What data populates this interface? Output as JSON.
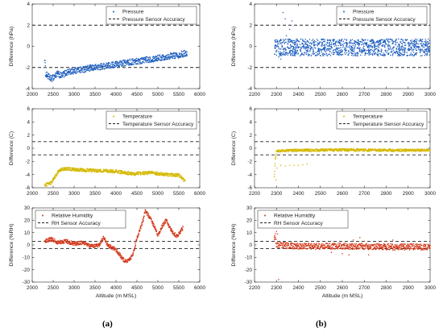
{
  "figure_labels": [
    "(a)",
    "(b)"
  ],
  "chart_data": [
    {
      "id": "pressure-a",
      "type": "scatter",
      "xlim": [
        2000,
        6000
      ],
      "xticks": [
        2000,
        2500,
        3000,
        3500,
        4000,
        4500,
        5000,
        5500,
        6000
      ],
      "ylim": [
        -4,
        4
      ],
      "yticks": [
        -4,
        -2,
        0,
        2,
        4
      ],
      "xlabel": "",
      "ylabel": "Difference (hPa)",
      "legend": {
        "placement": "top-right",
        "entries": [
          "Pressure",
          "Pressure Sensor Accuracy"
        ]
      },
      "accuracy_band": [
        -2,
        2
      ],
      "point_color": "#1f5fbf",
      "trend": [
        [
          2300,
          -1.1
        ],
        [
          2320,
          -2.6
        ],
        [
          2450,
          -3.1
        ],
        [
          2600,
          -2.6
        ],
        [
          2700,
          -2.8
        ],
        [
          2800,
          -2.5
        ],
        [
          3000,
          -2.3
        ],
        [
          3500,
          -2.0
        ],
        [
          4000,
          -1.7
        ],
        [
          4500,
          -1.4
        ],
        [
          5000,
          -1.1
        ],
        [
          5500,
          -0.8
        ],
        [
          5700,
          -0.6
        ]
      ],
      "spread": 0.3
    },
    {
      "id": "pressure-b",
      "type": "scatter",
      "xlim": [
        2200,
        3000
      ],
      "xticks": [
        2200,
        2300,
        2400,
        2500,
        2600,
        2700,
        2800,
        2900,
        3000
      ],
      "ylim": [
        -4,
        4
      ],
      "yticks": [
        -4,
        -2,
        0,
        2,
        4
      ],
      "xlabel": "",
      "ylabel": "Difference (hPa)",
      "legend": {
        "placement": "top-right",
        "entries": [
          "Pressure",
          "Pressure Sensor Accuracy"
        ]
      },
      "accuracy_band": [
        -2,
        2
      ],
      "point_color": "#1f5fbf",
      "bands": [
        [
          2290,
          3000,
          0.3,
          0.4
        ],
        [
          2290,
          3000,
          -0.5,
          0.4
        ]
      ],
      "outliers": [
        [
          2330,
          3.2
        ],
        [
          2340,
          2.6
        ],
        [
          2360,
          1.6
        ],
        [
          2370,
          2.4
        ],
        [
          2345,
          1.0
        ],
        [
          2320,
          -1.2
        ],
        [
          2310,
          -1.0
        ]
      ]
    },
    {
      "id": "temperature-a",
      "type": "scatter",
      "xlim": [
        2000,
        6000
      ],
      "xticks": [
        2000,
        2500,
        3000,
        3500,
        4000,
        4500,
        5000,
        5500,
        6000
      ],
      "ylim": [
        -6,
        6
      ],
      "yticks": [
        -6,
        -4,
        -2,
        0,
        2,
        4,
        6
      ],
      "xlabel": "",
      "ylabel": "Difference (C)",
      "legend": {
        "placement": "top-right",
        "entries": [
          "Temperature",
          "Temperature Sensor Accuracy"
        ]
      },
      "accuracy_band": [
        -1,
        1
      ],
      "point_color": "#d4b800",
      "trend": [
        [
          2300,
          -5.6
        ],
        [
          2450,
          -5.3
        ],
        [
          2550,
          -4.3
        ],
        [
          2650,
          -3.3
        ],
        [
          2800,
          -3.1
        ],
        [
          3200,
          -3.3
        ],
        [
          3600,
          -3.4
        ],
        [
          4000,
          -3.5
        ],
        [
          4400,
          -3.9
        ],
        [
          4800,
          -3.7
        ],
        [
          5200,
          -4.0
        ],
        [
          5500,
          -4.1
        ],
        [
          5650,
          -5.0
        ]
      ],
      "spread": 0.25
    },
    {
      "id": "temperature-b",
      "type": "scatter",
      "xlim": [
        2200,
        3000
      ],
      "xticks": [
        2200,
        2300,
        2400,
        2500,
        2600,
        2700,
        2800,
        2900,
        3000
      ],
      "ylim": [
        -6,
        6
      ],
      "yticks": [
        -6,
        -4,
        -2,
        0,
        2,
        4,
        6
      ],
      "xlabel": "",
      "ylabel": "Difference (C)",
      "legend": {
        "placement": "top-right",
        "entries": [
          "Temperature",
          "Temperature Sensor Accuracy"
        ]
      },
      "accuracy_band": [
        -1,
        1
      ],
      "point_color": "#d4b800",
      "trend": [
        [
          2290,
          -4.5
        ],
        [
          2295,
          -1.5
        ],
        [
          2300,
          -0.4
        ],
        [
          2400,
          -0.3
        ],
        [
          2600,
          -0.25
        ],
        [
          2800,
          -0.3
        ],
        [
          3000,
          -0.3
        ]
      ],
      "spread": 0.2,
      "outliers": [
        [
          2320,
          -2.6
        ],
        [
          2340,
          -2.7
        ],
        [
          2360,
          -2.6
        ],
        [
          2380,
          -2.6
        ],
        [
          2400,
          -2.6
        ],
        [
          2420,
          -2.5
        ],
        [
          2440,
          -2.4
        ],
        [
          2298,
          -4.8
        ],
        [
          2302,
          -3.0
        ]
      ]
    },
    {
      "id": "humidity-a",
      "type": "scatter",
      "xlim": [
        2000,
        6000
      ],
      "xticks": [
        2000,
        2500,
        3000,
        3500,
        4000,
        4500,
        5000,
        5500,
        6000
      ],
      "ylim": [
        -30,
        30
      ],
      "yticks": [
        -30,
        -20,
        -10,
        0,
        10,
        20,
        30
      ],
      "xlabel": "Altitude (m MSL)",
      "ylabel": "Difference (%RH)",
      "legend": {
        "placement": "top-left",
        "entries": [
          "Relative Humidity",
          "RH Sensor Accuracy"
        ]
      },
      "accuracy_band": [
        -3,
        3
      ],
      "point_color": "#d43a1c",
      "trend": [
        [
          2300,
          3
        ],
        [
          2450,
          5
        ],
        [
          2600,
          2
        ],
        [
          2800,
          3
        ],
        [
          3000,
          1
        ],
        [
          3200,
          2
        ],
        [
          3400,
          -1
        ],
        [
          3600,
          0
        ],
        [
          3700,
          6
        ],
        [
          3800,
          0
        ],
        [
          4000,
          -4
        ],
        [
          4200,
          -13
        ],
        [
          4300,
          -13
        ],
        [
          4400,
          -8
        ],
        [
          4500,
          5
        ],
        [
          4650,
          20
        ],
        [
          4700,
          28
        ],
        [
          4850,
          20
        ],
        [
          5000,
          8
        ],
        [
          5100,
          15
        ],
        [
          5200,
          20
        ],
        [
          5350,
          10
        ],
        [
          5450,
          7
        ],
        [
          5600,
          14
        ]
      ],
      "spread": 1.6
    },
    {
      "id": "humidity-b",
      "type": "scatter",
      "xlim": [
        2200,
        3000
      ],
      "xticks": [
        2200,
        2300,
        2400,
        2500,
        2600,
        2700,
        2800,
        2900,
        3000
      ],
      "ylim": [
        -30,
        30
      ],
      "yticks": [
        -30,
        -20,
        -10,
        0,
        10,
        20,
        30
      ],
      "xlabel": "Altitude (m MSL)",
      "ylabel": "Difference (%RH)",
      "legend": {
        "placement": "top-left",
        "entries": [
          "Relative Humidity",
          "RH Sensor Accuracy"
        ]
      },
      "accuracy_band": [
        -3,
        3
      ],
      "point_color": "#d43a1c",
      "trend": [
        [
          2290,
          5
        ],
        [
          2295,
          8
        ],
        [
          2300,
          0
        ],
        [
          2400,
          -1
        ],
        [
          2600,
          -1
        ],
        [
          2800,
          -1.5
        ],
        [
          3000,
          -1.5
        ]
      ],
      "spread": 2.5,
      "outliers": [
        [
          2300,
          11
        ],
        [
          2305,
          9
        ],
        [
          2310,
          -28
        ],
        [
          2550,
          -6
        ],
        [
          2600,
          -7
        ],
        [
          2630,
          -8
        ],
        [
          2650,
          4
        ],
        [
          2680,
          6
        ],
        [
          2700,
          3
        ],
        [
          2720,
          -8
        ],
        [
          2800,
          3
        ],
        [
          2830,
          4
        ]
      ]
    }
  ]
}
